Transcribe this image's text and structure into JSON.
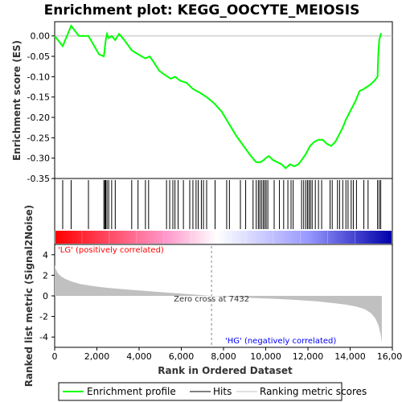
{
  "chart_data": [
    {
      "type": "line",
      "panel": "enrichment",
      "title": "Enrichment plot: KEGG_OOCYTE_MEIOSIS",
      "ylabel": "Enrichment score (ES)",
      "xlim": [
        0,
        16000
      ],
      "ylim": [
        -0.35,
        0.035
      ],
      "yticks": [
        "0.00",
        "-0.05",
        "-0.10",
        "-0.15",
        "-0.20",
        "-0.25",
        "-0.30",
        "-0.35"
      ],
      "ytick_values": [
        0.0,
        -0.05,
        -0.1,
        -0.15,
        -0.2,
        -0.25,
        -0.3,
        -0.35
      ],
      "line_color": "#00ff00",
      "x": [
        0,
        380,
        780,
        1150,
        1600,
        2100,
        2330,
        2420,
        2480,
        2560,
        2700,
        2870,
        3050,
        3300,
        3650,
        3950,
        4300,
        4500,
        4700,
        4950,
        5200,
        5500,
        5700,
        5950,
        6250,
        6550,
        6900,
        7200,
        7550,
        7900,
        8250,
        8600,
        8950,
        9300,
        9550,
        9750,
        9900,
        10000,
        10150,
        10350,
        10550,
        10750,
        10950,
        11150,
        11350,
        11550,
        11700,
        11900,
        12100,
        12300,
        12500,
        12700,
        12900,
        13100,
        13300,
        13500,
        13650,
        13800,
        13950,
        14100,
        14250,
        14450,
        14650,
        14800,
        14950,
        15150,
        15300,
        15330,
        15380,
        15450,
        15500
      ],
      "y": [
        0.0,
        -0.025,
        0.025,
        0.0,
        0.0,
        -0.045,
        -0.05,
        -0.01,
        0.005,
        -0.005,
        0.0,
        -0.01,
        0.005,
        -0.01,
        -0.035,
        -0.045,
        -0.055,
        -0.05,
        -0.065,
        -0.085,
        -0.095,
        -0.105,
        -0.1,
        -0.11,
        -0.115,
        -0.13,
        -0.14,
        -0.15,
        -0.165,
        -0.185,
        -0.215,
        -0.245,
        -0.27,
        -0.295,
        -0.31,
        -0.31,
        -0.305,
        -0.3,
        -0.295,
        -0.305,
        -0.31,
        -0.315,
        -0.325,
        -0.315,
        -0.32,
        -0.315,
        -0.305,
        -0.29,
        -0.27,
        -0.26,
        -0.255,
        -0.255,
        -0.265,
        -0.27,
        -0.26,
        -0.24,
        -0.225,
        -0.205,
        -0.19,
        -0.175,
        -0.16,
        -0.135,
        -0.13,
        -0.125,
        -0.12,
        -0.11,
        -0.1,
        -0.05,
        -0.01,
        0.005,
        0.005
      ]
    },
    {
      "type": "scatter",
      "panel": "hits",
      "hit_color": "#000000",
      "band_colors": [
        "#ff0000",
        "#ff99cc",
        "#ffffff",
        "#9999ff",
        "#0000aa"
      ],
      "hits": [
        380,
        780,
        1600,
        2330,
        2380,
        2420,
        2480,
        2560,
        2700,
        2870,
        3650,
        3950,
        4300,
        4450,
        5300,
        5450,
        5600,
        5700,
        5850,
        6100,
        6400,
        6550,
        6700,
        6800,
        6950,
        7050,
        7200,
        7600,
        8150,
        8280,
        8800,
        9050,
        9400,
        9550,
        9650,
        9720,
        9800,
        9880,
        9950,
        10020,
        10100,
        10400,
        10650,
        10850,
        11050,
        11200,
        11300,
        11700,
        11800,
        11900,
        11980,
        12050,
        12120,
        12200,
        12350,
        12500,
        12650,
        13050,
        13150,
        13400,
        13500,
        13650,
        13800,
        13900,
        14050,
        14150,
        14300,
        14650,
        14850,
        15300,
        15380,
        15450
      ]
    },
    {
      "type": "area",
      "panel": "ranked-metric",
      "ylabel": "Ranked list metric (Signal2Noise)",
      "xlabel": "Rank in Ordered Dataset",
      "xlim": [
        0,
        16000
      ],
      "ylim": [
        -5,
        5
      ],
      "yticks": [
        "4",
        "2",
        "0",
        "-2",
        "-4"
      ],
      "ytick_values": [
        4,
        2,
        0,
        -2,
        -4
      ],
      "xticks": [
        "0",
        "2,000",
        "4,000",
        "6,000",
        "8,000",
        "10,000",
        "12,000",
        "14,000",
        "16,000"
      ],
      "xtick_values": [
        0,
        2000,
        4000,
        6000,
        8000,
        10000,
        12000,
        14000,
        16000
      ],
      "fill_color": "#c0c0c0",
      "x": [
        0,
        50,
        150,
        300,
        500,
        800,
        1200,
        1800,
        2500,
        3500,
        4500,
        5500,
        6500,
        7432,
        8500,
        9500,
        10500,
        11500,
        12500,
        13200,
        13800,
        14300,
        14700,
        15000,
        15200,
        15350,
        15450,
        15500
      ],
      "values": [
        3.0,
        2.6,
        2.2,
        1.9,
        1.65,
        1.4,
        1.15,
        0.95,
        0.78,
        0.6,
        0.45,
        0.3,
        0.15,
        0.0,
        -0.12,
        -0.22,
        -0.3,
        -0.4,
        -0.55,
        -0.7,
        -0.85,
        -1.05,
        -1.3,
        -1.7,
        -2.2,
        -2.9,
        -3.8,
        -4.6
      ],
      "zero_cross_label": "Zero cross at 7432",
      "zero_cross_rank": 7432,
      "pos_label": "'LG' (positively correlated)",
      "neg_label": "'HG' (negatively correlated)",
      "pos_color": "#ff0000",
      "neg_color": "#0000ff"
    }
  ],
  "legend": {
    "items": [
      {
        "label": "Enrichment profile",
        "color": "#00ff00"
      },
      {
        "label": "Hits",
        "color": "#000000"
      },
      {
        "label": "Ranking metric scores",
        "color": "#c0c0c0"
      }
    ]
  }
}
